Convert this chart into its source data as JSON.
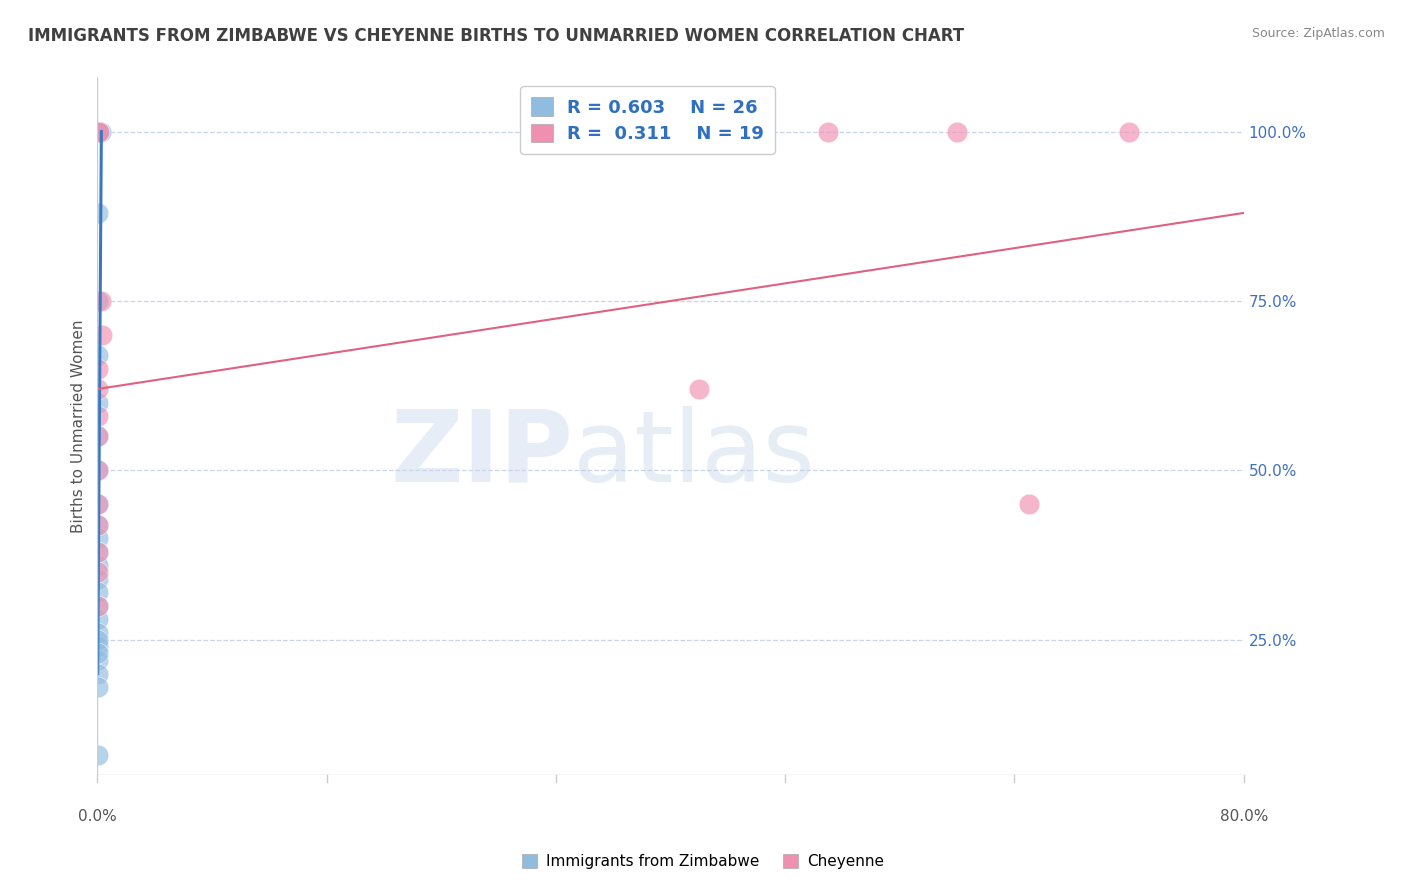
{
  "title": "IMMIGRANTS FROM ZIMBABWE VS CHEYENNE BIRTHS TO UNMARRIED WOMEN CORRELATION CHART",
  "source": "Source: ZipAtlas.com",
  "ylabel": "Births to Unmarried Women",
  "xmin": 0.0,
  "xmax": 80.0,
  "ymin": 5.0,
  "ymax": 108.0,
  "yticks": [
    25.0,
    50.0,
    75.0,
    100.0
  ],
  "ytick_labels": [
    "25.0%",
    "50.0%",
    "75.0%",
    "100.0%"
  ],
  "xtick_labels": [
    "0.0%",
    "80.0%"
  ],
  "legend_entries": [
    {
      "label": "Immigrants from Zimbabwe",
      "color": "#a8c8e8",
      "R": "0.603",
      "N": "26"
    },
    {
      "label": "Cheyenne",
      "color": "#f0a0b8",
      "R": "0.311",
      "N": "19"
    }
  ],
  "blue_scatter_x": [
    0.05,
    0.08,
    0.2,
    0.25,
    0.02,
    0.04,
    0.03,
    0.06,
    0.04,
    0.05,
    0.06,
    0.03,
    0.04,
    0.03,
    0.03,
    0.04,
    0.05,
    0.04,
    0.03,
    0.05,
    0.04,
    0.03,
    0.02,
    0.02,
    0.03,
    0.02
  ],
  "blue_scatter_y": [
    100.0,
    88.0,
    100.0,
    100.0,
    75.0,
    67.0,
    60.0,
    55.0,
    50.0,
    45.0,
    42.0,
    40.0,
    38.0,
    36.0,
    34.0,
    32.0,
    30.0,
    28.0,
    26.0,
    24.0,
    22.0,
    20.0,
    18.0,
    25.0,
    23.0,
    8.0
  ],
  "pink_scatter_x": [
    0.1,
    0.1,
    0.25,
    0.3,
    0.05,
    0.06,
    0.07,
    0.08,
    0.05,
    0.04,
    0.06,
    0.05,
    42.0,
    51.0,
    60.0,
    65.0,
    72.0,
    0.04,
    0.06
  ],
  "pink_scatter_y": [
    100.0,
    100.0,
    75.0,
    70.0,
    65.0,
    62.0,
    58.0,
    55.0,
    50.0,
    45.0,
    42.0,
    38.0,
    62.0,
    100.0,
    100.0,
    45.0,
    100.0,
    35.0,
    30.0
  ],
  "blue_line_x": [
    0.02,
    0.28
  ],
  "blue_line_y": [
    20.0,
    100.0
  ],
  "pink_line_x": [
    0.0,
    80.0
  ],
  "pink_line_y": [
    62.0,
    88.0
  ],
  "watermark_zip": "ZIP",
  "watermark_atlas": "atlas",
  "blue_color": "#90bce0",
  "pink_color": "#f090b0",
  "blue_line_color": "#3878c0",
  "pink_line_color": "#e06080",
  "legend_text_color": "#3070c0",
  "title_color": "#404040",
  "background_color": "#ffffff",
  "grid_color": "#c8d4e8",
  "axis_color": "#cccccc",
  "source_color": "#888888",
  "label_color": "#555555",
  "right_tick_color": "#4070c0"
}
